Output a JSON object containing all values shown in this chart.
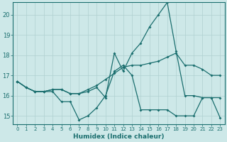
{
  "title": "",
  "xlabel": "Humidex (Indice chaleur)",
  "ylabel": "",
  "background_color": "#cde8e8",
  "grid_color": "#b0d0d0",
  "line_color": "#1a6e6e",
  "xlim": [
    -0.5,
    23.5
  ],
  "ylim": [
    14.6,
    20.6
  ],
  "xticks": [
    0,
    1,
    2,
    3,
    4,
    5,
    6,
    7,
    8,
    9,
    10,
    11,
    12,
    13,
    14,
    15,
    16,
    17,
    18,
    19,
    20,
    21,
    22,
    23
  ],
  "yticks": [
    15,
    16,
    17,
    18,
    19,
    20
  ],
  "series_low": [
    16.7,
    16.4,
    16.2,
    16.2,
    16.2,
    15.7,
    15.7,
    14.8,
    15.0,
    15.4,
    16.0,
    17.2,
    17.5,
    17.0,
    15.3,
    15.3,
    15.3,
    15.3,
    15.0,
    15.0,
    15.0,
    15.9,
    15.9,
    14.9
  ],
  "series_high": [
    16.7,
    16.4,
    16.2,
    16.2,
    16.3,
    16.3,
    16.1,
    16.1,
    16.2,
    16.4,
    15.9,
    18.1,
    17.2,
    18.1,
    18.6,
    19.4,
    20.0,
    20.6,
    18.2,
    16.0,
    16.0,
    15.9,
    15.9,
    15.9
  ],
  "series_mid": [
    16.7,
    16.4,
    16.2,
    16.2,
    16.3,
    16.3,
    16.1,
    16.1,
    16.3,
    16.5,
    16.8,
    17.1,
    17.4,
    17.5,
    17.5,
    17.6,
    17.7,
    17.9,
    18.1,
    17.5,
    17.5,
    17.3,
    17.0,
    17.0
  ]
}
